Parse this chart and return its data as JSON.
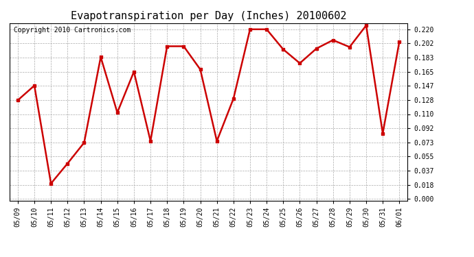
{
  "title": "Evapotranspiration per Day (Inches) 20100602",
  "copyright": "Copyright 2010 Cartronics.com",
  "dates": [
    "05/09",
    "05/10",
    "05/11",
    "05/12",
    "05/13",
    "05/14",
    "05/15",
    "05/16",
    "05/17",
    "05/18",
    "05/19",
    "05/20",
    "05/21",
    "05/22",
    "05/23",
    "05/24",
    "05/25",
    "05/26",
    "05/27",
    "05/28",
    "05/29",
    "05/30",
    "05/31",
    "06/01"
  ],
  "values": [
    0.128,
    0.147,
    0.02,
    0.046,
    0.073,
    0.184,
    0.112,
    0.165,
    0.075,
    0.198,
    0.198,
    0.168,
    0.075,
    0.13,
    0.22,
    0.22,
    0.194,
    0.176,
    0.195,
    0.206,
    0.197,
    0.225,
    0.085,
    0.204
  ],
  "line_color": "#cc0000",
  "marker": "s",
  "marker_size": 3,
  "marker_color": "#cc0000",
  "yticks": [
    0.0,
    0.018,
    0.037,
    0.055,
    0.073,
    0.092,
    0.11,
    0.128,
    0.147,
    0.165,
    0.183,
    0.202,
    0.22
  ],
  "background_color": "#ffffff",
  "grid_color": "#aaaaaa",
  "title_fontsize": 11,
  "copyright_fontsize": 7,
  "tick_fontsize": 7,
  "line_width": 1.8
}
